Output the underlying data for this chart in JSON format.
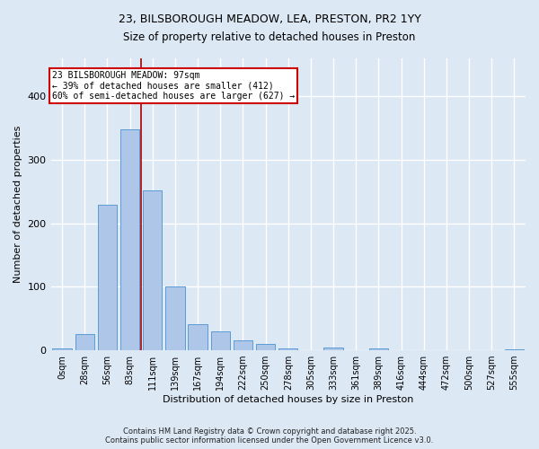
{
  "title_line1": "23, BILSBOROUGH MEADOW, LEA, PRESTON, PR2 1YY",
  "title_line2": "Size of property relative to detached houses in Preston",
  "xlabel": "Distribution of detached houses by size in Preston",
  "ylabel": "Number of detached properties",
  "bar_labels": [
    "0sqm",
    "28sqm",
    "56sqm",
    "83sqm",
    "111sqm",
    "139sqm",
    "167sqm",
    "194sqm",
    "222sqm",
    "250sqm",
    "278sqm",
    "305sqm",
    "333sqm",
    "361sqm",
    "389sqm",
    "416sqm",
    "444sqm",
    "472sqm",
    "500sqm",
    "527sqm",
    "555sqm"
  ],
  "bar_values": [
    3,
    25,
    230,
    348,
    252,
    100,
    41,
    30,
    15,
    10,
    3,
    0,
    4,
    0,
    3,
    0,
    0,
    0,
    0,
    0,
    2
  ],
  "bar_color": "#aec6e8",
  "bar_edgecolor": "#5b9bd5",
  "vline_x": 3.5,
  "annotation_text": "23 BILSBOROUGH MEADOW: 97sqm\n← 39% of detached houses are smaller (412)\n60% of semi-detached houses are larger (627) →",
  "annotation_box_facecolor": "#ffffff",
  "annotation_box_edgecolor": "#cc0000",
  "vline_color": "#aa0000",
  "ylim": [
    0,
    460
  ],
  "background_color": "#dde8f5",
  "grid_color": "#ffffff",
  "footer_text": "Contains HM Land Registry data © Crown copyright and database right 2025.\nContains public sector information licensed under the Open Government Licence v3.0."
}
